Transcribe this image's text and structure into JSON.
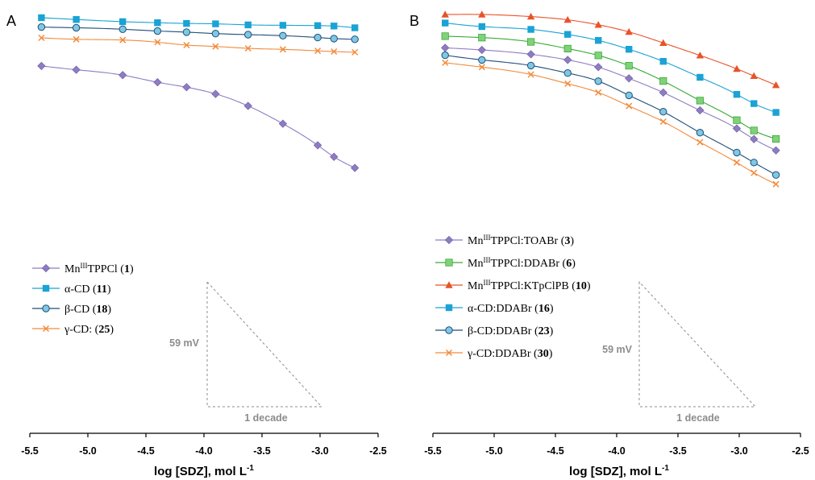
{
  "chart_data": [
    {
      "panel": "A",
      "type": "line",
      "xlabel": "log [SDZ], mol L",
      "xlabel_sup": "-1",
      "xlim": [
        -5.5,
        -2.5
      ],
      "xticks": [
        "-5.5",
        "-5.0",
        "-4.5",
        "-4.0",
        "-3.5",
        "-3.0",
        "-2.5"
      ],
      "y_scale_bar": {
        "label": "59 mV"
      },
      "x_scale_bar": {
        "label": "1 decade"
      },
      "legend_position": "bottom-left",
      "series": [
        {
          "name": "Mn",
          "sup": "III",
          "rest": "TPPCl (",
          "bold": "1",
          "close": ")",
          "color": "#8e7cc3",
          "marker": "diamond",
          "x": [
            -5.4,
            -5.1,
            -4.7,
            -4.4,
            -4.15,
            -3.9,
            -3.62,
            -3.32,
            -3.02,
            -2.88,
            -2.7
          ],
          "y": [
            -59.9,
            -64.6,
            -71.3,
            -80.1,
            -86.3,
            -94.6,
            -109.5,
            -131.6,
            -158.4,
            -172.7,
            -186.5
          ]
        },
        {
          "name": "α-CD (",
          "bold": "11",
          "close": ")",
          "color": "#1aa3d4",
          "marker": "square",
          "x": [
            -5.4,
            -5.1,
            -4.7,
            -4.4,
            -4.15,
            -3.9,
            -3.62,
            -3.32,
            -3.02,
            -2.88,
            -2.7
          ],
          "y": [
            0.0,
            -2.2,
            -4.9,
            -6.2,
            -7.1,
            -7.6,
            -8.9,
            -9.4,
            -9.8,
            -10.3,
            -12.5
          ]
        },
        {
          "name": "β-CD (",
          "bold": "18",
          "close": ")",
          "color": "#1f4e79",
          "fill": "#7ec8e3",
          "marker": "circle",
          "x": [
            -5.4,
            -5.1,
            -4.7,
            -4.4,
            -4.15,
            -3.9,
            -3.62,
            -3.32,
            -3.02,
            -2.88,
            -2.7
          ],
          "y": [
            -11.6,
            -12.5,
            -14.3,
            -16.5,
            -17.9,
            -19.7,
            -21.0,
            -22.3,
            -24.6,
            -25.9,
            -26.8
          ]
        },
        {
          "name": "γ-CD: (",
          "bold": "25",
          "close": ")",
          "color": "#f28b3c",
          "marker": "x",
          "x": [
            -5.4,
            -5.1,
            -4.7,
            -4.4,
            -4.15,
            -3.9,
            -3.62,
            -3.32,
            -3.02,
            -2.88,
            -2.7
          ],
          "y": [
            -25.0,
            -26.8,
            -27.7,
            -30.4,
            -34.0,
            -35.7,
            -38.0,
            -39.3,
            -41.1,
            -42.0,
            -42.9
          ]
        }
      ]
    },
    {
      "panel": "B",
      "type": "line",
      "xlabel": "log [SDZ], mol L",
      "xlabel_sup": "-1",
      "xlim": [
        -5.5,
        -2.5
      ],
      "xticks": [
        "-5.5",
        "-5.0",
        "-4.5",
        "-4.0",
        "-3.5",
        "-3.0",
        "-2.5"
      ],
      "y_scale_bar": {
        "label": "59 mV"
      },
      "x_scale_bar": {
        "label": "1 decade"
      },
      "legend_position": "bottom-left",
      "series": [
        {
          "name": "Mn",
          "sup": "III",
          "rest": "TPPCl:TOABr (",
          "bold": "3",
          "close": ")",
          "color": "#8e7cc3",
          "marker": "diamond",
          "x": [
            -5.4,
            -5.1,
            -4.7,
            -4.4,
            -4.15,
            -3.9,
            -3.62,
            -3.32,
            -3.02,
            -2.88,
            -2.7
          ],
          "y": [
            -41.4,
            -44.0,
            -49.4,
            -56.4,
            -65.3,
            -79.3,
            -96.9,
            -119.0,
            -141.5,
            -154.7,
            -168.8
          ]
        },
        {
          "name": "Mn",
          "sup": "III",
          "rest": "TPPCl:DDABr (",
          "bold": "6",
          "close": ")",
          "color": "#3aaa35",
          "fill": "#7fd17a",
          "marker": "square",
          "x": [
            -5.4,
            -5.1,
            -4.7,
            -4.4,
            -4.15,
            -3.9,
            -3.62,
            -3.32,
            -3.02,
            -2.88,
            -2.7
          ],
          "y": [
            -26.9,
            -28.7,
            -34.0,
            -42.4,
            -50.8,
            -63.6,
            -82.6,
            -106.9,
            -131.2,
            -144.0,
            -154.5
          ]
        },
        {
          "name": "Mn",
          "sup": "III",
          "rest": "TPPCl:KTpClPB (",
          "bold": "10",
          "close": ")",
          "color": "#e8532a",
          "marker": "triangle",
          "x": [
            -5.4,
            -5.1,
            -4.7,
            -4.4,
            -4.15,
            -3.9,
            -3.62,
            -3.32,
            -3.02,
            -2.88,
            -2.7
          ],
          "y": [
            0.0,
            0.0,
            -2.6,
            -6.6,
            -12.8,
            -21.6,
            -35.3,
            -50.8,
            -67.5,
            -76.3,
            -87.7
          ]
        },
        {
          "name": "α-CD:DDABr (",
          "bold": "16",
          "close": ")",
          "color": "#1aa3d4",
          "marker": "square",
          "x": [
            -5.4,
            -5.1,
            -4.7,
            -4.4,
            -4.15,
            -3.9,
            -3.62,
            -3.32,
            -3.02,
            -2.88,
            -2.7
          ],
          "y": [
            -10.6,
            -15.0,
            -18.5,
            -24.7,
            -32.2,
            -43.2,
            -58.2,
            -78.0,
            -99.2,
            -110.6,
            -121.6
          ]
        },
        {
          "name": "β-CD:DDABr (",
          "bold": "23",
          "close": ")",
          "color": "#1f4e79",
          "fill": "#7ec8e3",
          "marker": "circle",
          "x": [
            -5.4,
            -5.1,
            -4.7,
            -4.4,
            -4.15,
            -3.9,
            -3.62,
            -3.32,
            -3.02,
            -2.88,
            -2.7
          ],
          "y": [
            -50.6,
            -56.4,
            -63.4,
            -72.7,
            -82.8,
            -100.4,
            -120.7,
            -146.7,
            -171.4,
            -183.8,
            -199.2
          ]
        },
        {
          "name": "γ-CD:DDABr (",
          "bold": "30",
          "close": ")",
          "color": "#f28b3c",
          "marker": "x",
          "x": [
            -5.4,
            -5.1,
            -4.7,
            -4.4,
            -4.15,
            -3.9,
            -3.62,
            -3.32,
            -3.02,
            -2.88,
            -2.7
          ],
          "y": [
            -59.9,
            -65.3,
            -74.5,
            -85.9,
            -96.9,
            -113.6,
            -133.0,
            -158.6,
            -183.8,
            -196.6,
            -210.7
          ]
        }
      ]
    }
  ]
}
